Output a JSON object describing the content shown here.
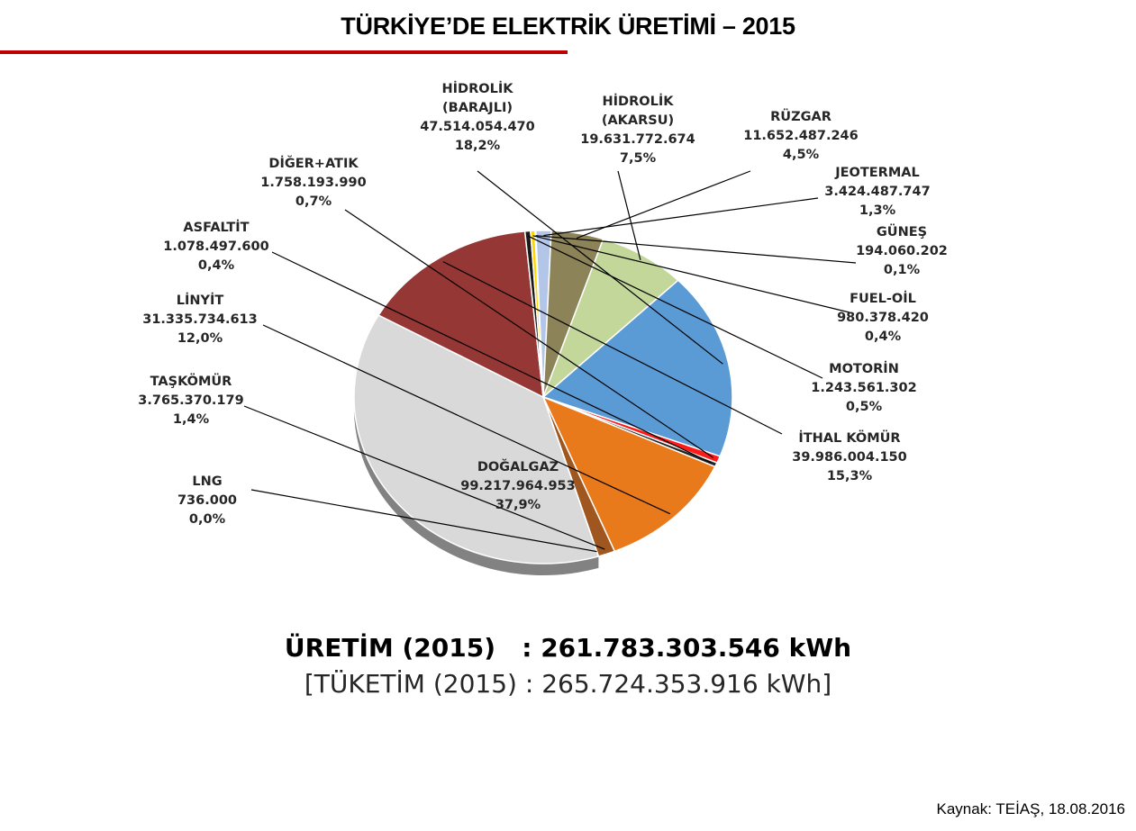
{
  "title": "TÜRKİYE’DE ELEKTRİK ÜRETİMİ – 2015",
  "total_line": "ÜRETİM (2015)   : 261.783.303.546 kWh",
  "consumption_line": "[TÜKETİM (2015) : 265.724.353.916 kWh]",
  "source_note": "Kaynak: TEİAŞ, 18.08.2016",
  "chart_data": {
    "type": "pie",
    "title": "TÜRKİYE’DE ELEKTRİK ÜRETİMİ – 2015",
    "unit": "kWh",
    "total": 261783303546,
    "slices": [
      {
        "name": "DOĞALGAZ",
        "value_text": "99.217.964.953",
        "value": 99217964953,
        "percent_text": "37,9%",
        "percent": 37.9,
        "color": "#d9d9d9"
      },
      {
        "name": "İTHAL KÖMÜR",
        "value_text": "39.986.004.150",
        "value": 39986004150,
        "percent_text": "15,3%",
        "percent": 15.3,
        "color": "#953735"
      },
      {
        "name": "MOTORİN",
        "value_text": "1.243.561.302",
        "value": 1243561302,
        "percent_text": "0,5%",
        "percent": 0.5,
        "color": "#1a1a1a"
      },
      {
        "name": "FUEL-OİL",
        "value_text": "980.378.420",
        "value": 980378420,
        "percent_text": "0,4%",
        "percent": 0.4,
        "color": "#ffd700"
      },
      {
        "name": "GÜNEŞ",
        "value_text": "194.060.202",
        "value": 194060202,
        "percent_text": "0,1%",
        "percent": 0.1,
        "color": "#f2f2f2"
      },
      {
        "name": "JEOTERMAL",
        "value_text": "3.424.487.747",
        "value": 3424487747,
        "percent_text": "1,3%",
        "percent": 1.3,
        "color": "#b4c6e7"
      },
      {
        "name": "RÜZGAR",
        "value_text": "11.652.487.246",
        "value": 11652487246,
        "percent_text": "4,5%",
        "percent": 4.5,
        "color": "#8c8358"
      },
      {
        "name_lines": [
          "HİDROLİK",
          "(AKARSU)"
        ],
        "value_text": "19.631.772.674",
        "value": 19631772674,
        "percent_text": "7,5%",
        "percent": 7.5,
        "color": "#c4d79b"
      },
      {
        "name_lines": [
          "HİDROLİK",
          "(BARAJLI)"
        ],
        "value_text": "47.514.054.470",
        "value": 47514054470,
        "percent_text": "18,2%",
        "percent": 18.2,
        "color": "#5b9bd5"
      },
      {
        "name": "DİĞER+ATIK",
        "value_text": "1.758.193.990",
        "value": 1758193990,
        "percent_text": "0,7%",
        "percent": 0.7,
        "color": "#ff1a1a"
      },
      {
        "name": "ASFALTİT",
        "value_text": "1.078.497.600",
        "value": 1078497600,
        "percent_text": "0,4%",
        "percent": 0.4,
        "color": "#262626"
      },
      {
        "name": "LİNYİT",
        "value_text": "31.335.734.613",
        "value": 31335734613,
        "percent_text": "12,0%",
        "percent": 12.0,
        "color": "#e97a1c"
      },
      {
        "name": "TAŞKÖMÜR",
        "value_text": "3.765.370.179",
        "value": 3765370179,
        "percent_text": "1,4%",
        "percent": 1.4,
        "color": "#a0561f"
      },
      {
        "name": "LNG",
        "value_text": "736.000",
        "value": 736000,
        "percent_text": "0,0%",
        "percent": 0.0,
        "color": "#31859c"
      }
    ]
  }
}
